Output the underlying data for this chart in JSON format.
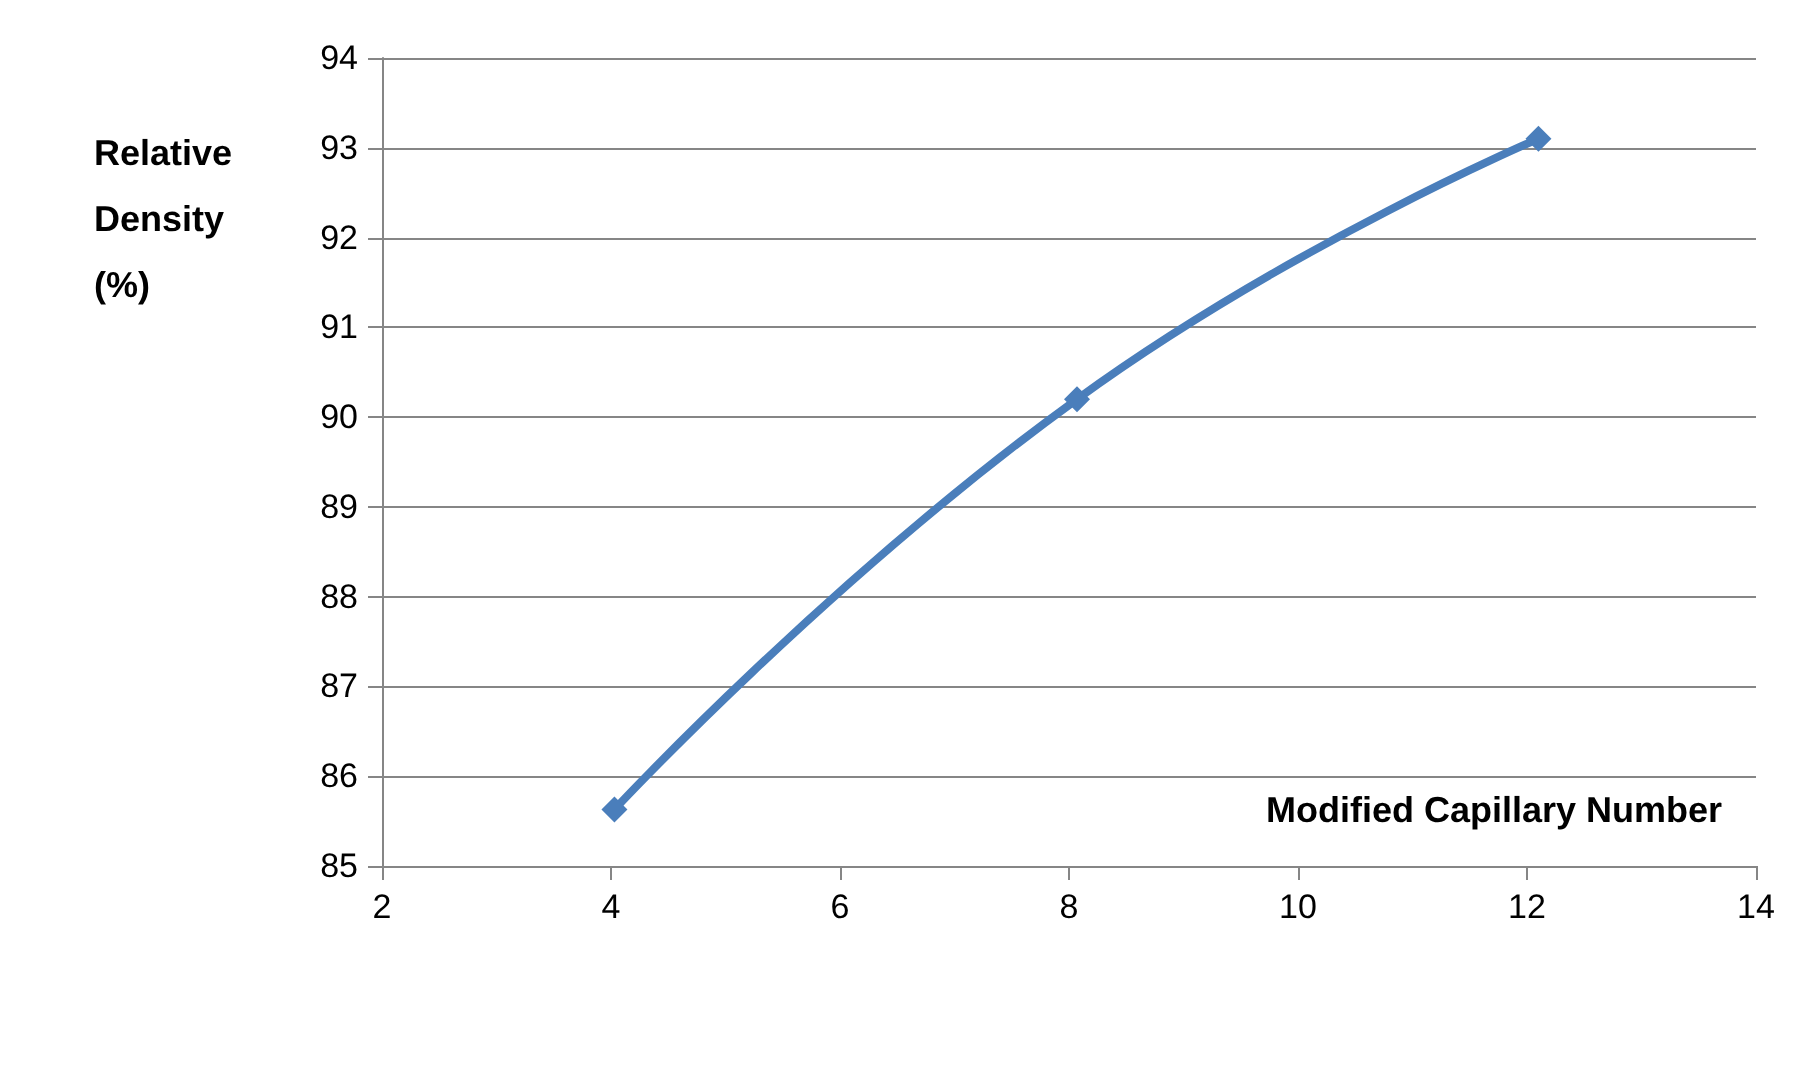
{
  "chart_data": {
    "type": "line",
    "xlabel": "Modified Capillary Number",
    "ylabel": "Relative Density (%)",
    "x": [
      4.03,
      8.07,
      12.1
    ],
    "series": [
      {
        "color": "#4a7ebb",
        "values": [
          85.63,
          90.2,
          93.1
        ]
      }
    ],
    "xlim": [
      2,
      14
    ],
    "xticks": [
      2,
      4,
      6,
      8,
      10,
      12,
      14
    ],
    "ylim": [
      85,
      94
    ],
    "yticks": [
      85,
      86,
      87,
      88,
      89,
      90,
      91,
      92,
      93,
      94
    ],
    "grid": "y",
    "marker": "diamond",
    "line_style": "solid"
  }
}
